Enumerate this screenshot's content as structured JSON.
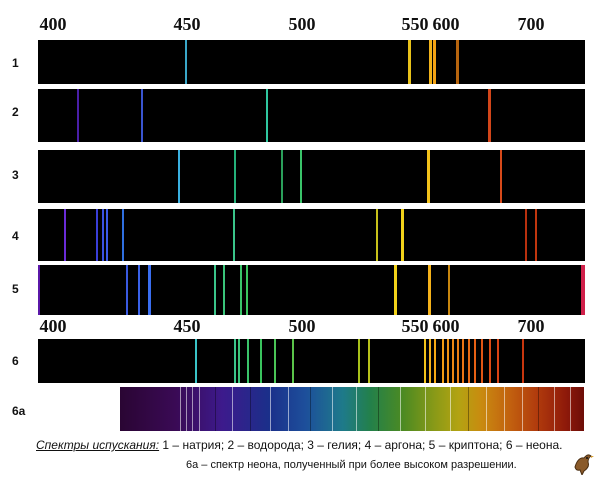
{
  "scale_top": {
    "ticks": [
      "400",
      "450",
      "500",
      "550",
      "600",
      "700"
    ]
  },
  "scale_mid": {
    "ticks": [
      "400",
      "450",
      "500",
      "550",
      "600",
      "700"
    ]
  },
  "rows": [
    {
      "label": "1"
    },
    {
      "label": "2"
    },
    {
      "label": "3"
    },
    {
      "label": "4"
    },
    {
      "label": "5"
    },
    {
      "label": "6"
    },
    {
      "label": "6а"
    }
  ],
  "caption": {
    "title": "Спектры испускания:",
    "line1": " 1 – натрия; 2 – водорода; 3 – гелия; 4 – аргона; 5 – криптона; 6 – неона.",
    "line2": "6а – спектр неона, полученный при более высоком разрешении."
  },
  "colors": {
    "strip": "#000000",
    "background": "#ffffff"
  },
  "icon": "bird-logo-icon"
}
